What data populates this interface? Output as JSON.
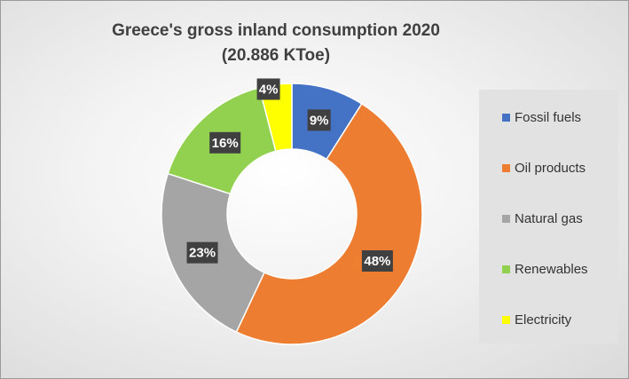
{
  "chart_data": {
    "type": "pie",
    "variant": "donut",
    "title": "Greece's gross inland consumption 2020",
    "subtitle": "(20.886 KToe)",
    "categories": [
      "Fossil fuels",
      "Oil products",
      "Natural gas",
      "Renewables",
      "Electricity"
    ],
    "values": [
      9,
      48,
      23,
      16,
      4
    ],
    "data_labels": [
      "9%",
      "48%",
      "23%",
      "16%",
      "4%"
    ],
    "colors": [
      "#4472C4",
      "#ED7D31",
      "#A5A5A5",
      "#92D050",
      "#FFFF00"
    ],
    "legend_position": "right",
    "unit": "%"
  }
}
